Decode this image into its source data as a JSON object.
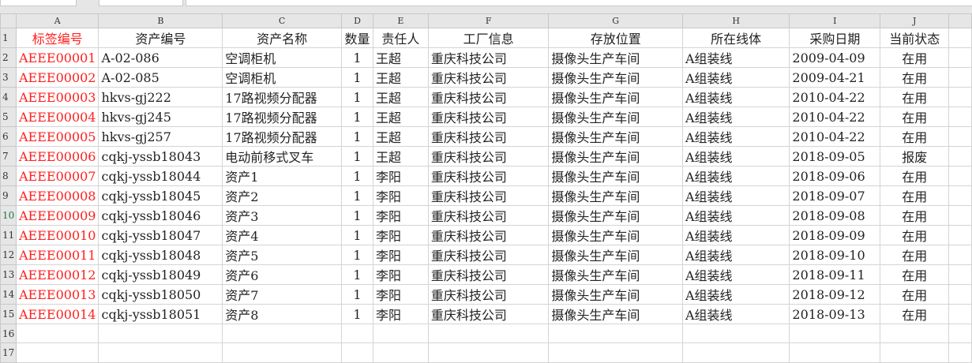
{
  "columns": [
    "A",
    "B",
    "C",
    "D",
    "E",
    "F",
    "G",
    "H",
    "I",
    "J"
  ],
  "headers": [
    "标签编号",
    "资产编号",
    "资产名称",
    "数量",
    "责任人",
    "工厂信息",
    "存放位置",
    "所在线体",
    "采购日期",
    "当前状态"
  ],
  "colors": {
    "tag_red": "#ff2020",
    "header_bg": "#e6e6e6"
  },
  "rows": [
    [
      "AEEE00001",
      "A-02-086",
      "空调柜机",
      "1",
      "王超",
      "重庆科技公司",
      "摄像头生产车间",
      "A组装线",
      "2009-04-09",
      "在用"
    ],
    [
      "AEEE00002",
      "A-02-085",
      "空调柜机",
      "1",
      "王超",
      "重庆科技公司",
      "摄像头生产车间",
      "A组装线",
      "2009-04-21",
      "在用"
    ],
    [
      "AEEE00003",
      "hkvs-gj222",
      "17路视频分配器",
      "1",
      "王超",
      "重庆科技公司",
      "摄像头生产车间",
      "A组装线",
      "2010-04-22",
      "在用"
    ],
    [
      "AEEE00004",
      "hkvs-gj245",
      "17路视频分配器",
      "1",
      "王超",
      "重庆科技公司",
      "摄像头生产车间",
      "A组装线",
      "2010-04-22",
      "在用"
    ],
    [
      "AEEE00005",
      "hkvs-gj257",
      "17路视频分配器",
      "1",
      "王超",
      "重庆科技公司",
      "摄像头生产车间",
      "A组装线",
      "2010-04-22",
      "在用"
    ],
    [
      "AEEE00006",
      "cqkj-yssb18043",
      "电动前移式叉车",
      "1",
      "王超",
      "重庆科技公司",
      "摄像头生产车间",
      "A组装线",
      "2018-09-05",
      "报废"
    ],
    [
      "AEEE00007",
      "cqkj-yssb18044",
      "资产1",
      "1",
      "李阳",
      "重庆科技公司",
      "摄像头生产车间",
      "A组装线",
      "2018-09-06",
      "在用"
    ],
    [
      "AEEE00008",
      "cqkj-yssb18045",
      "资产2",
      "1",
      "李阳",
      "重庆科技公司",
      "摄像头生产车间",
      "A组装线",
      "2018-09-07",
      "在用"
    ],
    [
      "AEEE00009",
      "cqkj-yssb18046",
      "资产3",
      "1",
      "李阳",
      "重庆科技公司",
      "摄像头生产车间",
      "A组装线",
      "2018-09-08",
      "在用"
    ],
    [
      "AEEE00010",
      "cqkj-yssb18047",
      "资产4",
      "1",
      "李阳",
      "重庆科技公司",
      "摄像头生产车间",
      "A组装线",
      "2018-09-09",
      "在用"
    ],
    [
      "AEEE00011",
      "cqkj-yssb18048",
      "资产5",
      "1",
      "李阳",
      "重庆科技公司",
      "摄像头生产车间",
      "A组装线",
      "2018-09-10",
      "在用"
    ],
    [
      "AEEE00012",
      "cqkj-yssb18049",
      "资产6",
      "1",
      "李阳",
      "重庆科技公司",
      "摄像头生产车间",
      "A组装线",
      "2018-09-11",
      "在用"
    ],
    [
      "AEEE00013",
      "cqkj-yssb18050",
      "资产7",
      "1",
      "李阳",
      "重庆科技公司",
      "摄像头生产车间",
      "A组装线",
      "2018-09-12",
      "在用"
    ],
    [
      "AEEE00014",
      "cqkj-yssb18051",
      "资产8",
      "1",
      "李阳",
      "重庆科技公司",
      "摄像头生产车间",
      "A组装线",
      "2018-09-13",
      "在用"
    ]
  ],
  "row_numbers": [
    "1",
    "2",
    "3",
    "4",
    "5",
    "6",
    "7",
    "8",
    "9",
    "10",
    "11",
    "12",
    "13",
    "14",
    "15",
    "16",
    "17"
  ],
  "selected_row": "10"
}
